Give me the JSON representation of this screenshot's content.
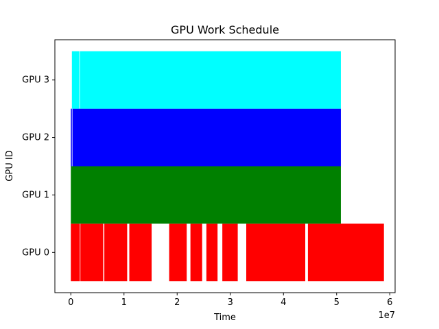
{
  "chart_data": {
    "type": "gantt",
    "title": "GPU Work Schedule",
    "xlabel": "Time",
    "ylabel": "GPU ID",
    "x_offset_label": "1e7",
    "xlim": [
      -3000000,
      61000000
    ],
    "x_ticks": [
      0,
      10000000,
      20000000,
      30000000,
      40000000,
      50000000,
      60000000
    ],
    "x_tick_labels": [
      "0",
      "1",
      "2",
      "3",
      "4",
      "5",
      "6"
    ],
    "y_categories": [
      "GPU 0",
      "GPU 1",
      "GPU 2",
      "GPU 3"
    ],
    "grid": false,
    "series": [
      {
        "gpu": "GPU 0",
        "color": "#ff0000",
        "intervals": [
          [
            0,
            1700000
          ],
          [
            1800000,
            6100000
          ],
          [
            6300000,
            10600000
          ],
          [
            11000000,
            15200000
          ],
          [
            18500000,
            21800000
          ],
          [
            22500000,
            24700000
          ],
          [
            25500000,
            27600000
          ],
          [
            28500000,
            31400000
          ],
          [
            33000000,
            44100000
          ],
          [
            44600000,
            58900000
          ]
        ]
      },
      {
        "gpu": "GPU 1",
        "color": "#008000",
        "intervals": [
          [
            0,
            50800000
          ]
        ]
      },
      {
        "gpu": "GPU 2",
        "color": "#0000ff",
        "intervals": [
          [
            0,
            200000
          ],
          [
            300000,
            50800000
          ]
        ]
      },
      {
        "gpu": "GPU 3",
        "color": "#00ffff",
        "intervals": [
          [
            200000,
            1600000
          ],
          [
            1700000,
            50800000
          ]
        ]
      }
    ]
  }
}
